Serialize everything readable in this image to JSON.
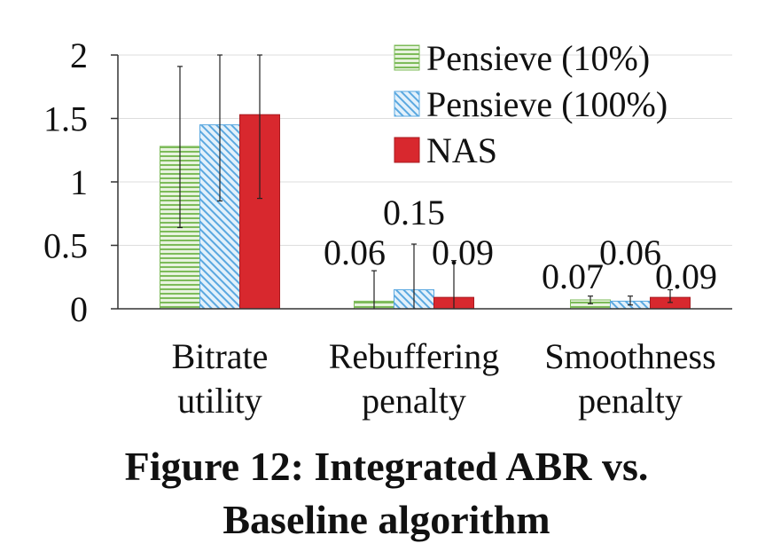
{
  "caption": {
    "line1": "Figure 12: Integrated ABR vs.",
    "line2": "Baseline algorithm"
  },
  "chart_data": {
    "type": "bar",
    "categories": [
      [
        "Bitrate",
        "utility"
      ],
      [
        "Rebuffering",
        "penalty"
      ],
      [
        "Smoothness",
        "penalty"
      ]
    ],
    "ylim": [
      0,
      2
    ],
    "yticks": [
      "0",
      "0.5",
      "1",
      "1.5",
      "2"
    ],
    "ytick_values": [
      0,
      0.5,
      1,
      1.5,
      2
    ],
    "grid": true,
    "legend_position": "top-right",
    "series": [
      {
        "name": "Pensieve (10%)",
        "values": [
          1.28,
          0.06,
          0.07
        ],
        "err_low": [
          0.64,
          0.0,
          0.04
        ],
        "err_high": [
          1.91,
          0.3,
          0.1
        ],
        "labels": [
          "",
          "0.06",
          "0.07"
        ],
        "color": "#7dbb5a",
        "pattern": "horizontal"
      },
      {
        "name": "Pensieve (100%)",
        "values": [
          1.45,
          0.15,
          0.06
        ],
        "err_low": [
          0.85,
          0.0,
          0.03
        ],
        "err_high": [
          2.0,
          0.51,
          0.1
        ],
        "labels": [
          "",
          "0.15",
          "0.06"
        ],
        "color": "#5aa8e0",
        "pattern": "diagonal"
      },
      {
        "name": "NAS",
        "values": [
          1.53,
          0.09,
          0.09
        ],
        "err_low": [
          0.87,
          0.0,
          0.05
        ],
        "err_high": [
          2.0,
          0.38,
          0.15
        ],
        "labels": [
          "",
          "0.09",
          "0.09"
        ],
        "color": "#d8282e",
        "pattern": "solid"
      }
    ]
  }
}
